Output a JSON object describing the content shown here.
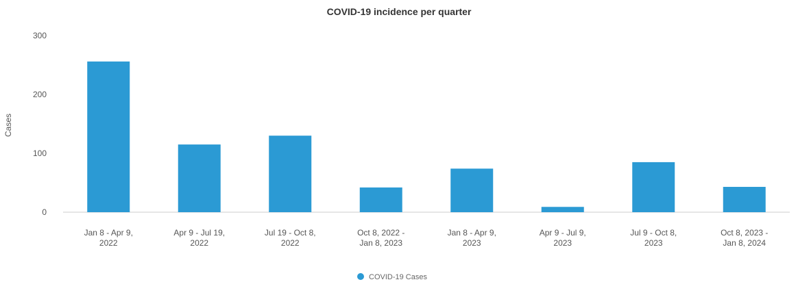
{
  "chart_data": {
    "type": "bar",
    "title": "COVID-19 incidence per quarter",
    "xlabel": "",
    "ylabel": "Cases",
    "ylim": [
      0,
      300
    ],
    "yticks": [
      0,
      100,
      200,
      300
    ],
    "grid": false,
    "legend_position": "bottom-center",
    "categories": [
      [
        "Jan 8 - Apr 9,",
        "2022"
      ],
      [
        "Apr 9 - Jul 19,",
        "2022"
      ],
      [
        "Jul 19 - Oct 8,",
        "2022"
      ],
      [
        "Oct 8, 2022 -",
        "Jan 8, 2023"
      ],
      [
        "Jan 8 - Apr 9,",
        "2023"
      ],
      [
        "Apr 9 - Jul 9,",
        "2023"
      ],
      [
        "Jul 9 - Oct 8,",
        "2023"
      ],
      [
        "Oct 8, 2023 -",
        "Jan 8, 2024"
      ]
    ],
    "series": [
      {
        "name": "COVID-19 Cases",
        "color": "#2b9ad4",
        "values": [
          256,
          115,
          130,
          42,
          74,
          9,
          85,
          43
        ]
      }
    ]
  }
}
